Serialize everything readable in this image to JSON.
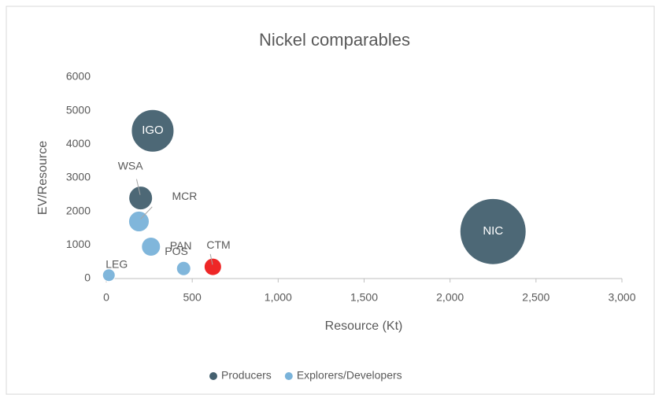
{
  "chart_data": {
    "type": "bubble",
    "title": "Nickel comparables",
    "x_label": "Resource (Kt)",
    "y_label": "EV/Resource",
    "xlim": [
      0,
      3000
    ],
    "xticks": [
      0,
      500,
      {
        "value": 1000,
        "label": "1,000"
      },
      {
        "value": 1500,
        "label": "1,500"
      },
      {
        "value": 2000,
        "label": "2,000"
      },
      {
        "value": 2500,
        "label": "2,500"
      },
      {
        "value": 3000,
        "label": "3,000"
      }
    ],
    "ylim": [
      0,
      6000
    ],
    "yticks": [
      0,
      1000,
      2000,
      3000,
      4000,
      5000,
      6000
    ],
    "legend": "bottom",
    "grid": false,
    "series": [
      {
        "name": "Producers",
        "color": "#44606f",
        "labels": [
          "IGO",
          "WSA",
          "NIC"
        ],
        "x": [
          270,
          200,
          2250
        ],
        "values": [
          4400,
          2400,
          1400
        ],
        "sizes": [
          730,
          225,
          1760
        ]
      },
      {
        "name": "Explorers/Developers",
        "color": "#7ab3da",
        "labels": [
          "MCR",
          "PAN",
          "POS",
          "LEG",
          "CTM"
        ],
        "colors": [
          "#7ab3da",
          "#7ab3da",
          "#7ab3da",
          "#7ab3da",
          "#ee1c1c"
        ],
        "x": [
          190,
          260,
          450,
          15,
          620
        ],
        "values": [
          1700,
          950,
          300,
          100,
          350
        ],
        "sizes": [
          170,
          144,
          81,
          64,
          121
        ]
      }
    ]
  }
}
